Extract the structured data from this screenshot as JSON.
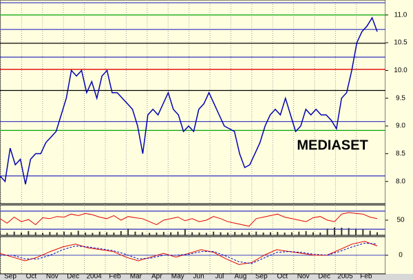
{
  "chart_data": [
    {
      "type": "line",
      "title": "MEDIASET",
      "color": "#0000b0",
      "values": [
        8.1,
        8.0,
        8.6,
        8.3,
        8.4,
        7.95,
        8.4,
        8.5,
        8.5,
        8.7,
        8.8,
        8.9,
        9.2,
        9.5,
        10.0,
        9.9,
        10.0,
        9.6,
        9.8,
        9.5,
        9.9,
        10.0,
        9.6,
        9.6,
        9.5,
        9.4,
        9.3,
        9.0,
        8.5,
        9.2,
        9.3,
        9.2,
        9.4,
        9.6,
        9.3,
        9.2,
        8.9,
        9.0,
        8.9,
        9.3,
        9.4,
        9.6,
        9.4,
        9.2,
        9.0,
        8.95,
        8.9,
        8.5,
        8.25,
        8.3,
        8.5,
        8.7,
        9.0,
        9.2,
        9.3,
        9.2,
        9.5,
        9.2,
        8.9,
        9.0,
        9.3,
        9.2,
        9.3,
        9.2,
        9.2,
        9.1,
        8.95,
        9.5,
        9.6,
        10.0,
        10.5,
        10.7,
        10.8,
        10.95,
        10.7
      ],
      "ylim": [
        7.6,
        11.27
      ],
      "yticks": [
        {
          "value": 8,
          "label": "8.0"
        },
        8.5,
        {
          "value": 9,
          "label": "9.0"
        },
        9.5,
        {
          "value": 10,
          "label": "10.0"
        },
        10.5,
        {
          "value": 11,
          "label": "11.0"
        }
      ],
      "hlines": [
        {
          "value": 11.22,
          "color": "#4040c0"
        },
        {
          "value": 11.0,
          "color": "#00a000"
        },
        {
          "value": 10.74,
          "color": "#4040c0"
        },
        {
          "value": 10.49,
          "color": "#000000"
        },
        {
          "value": 10.24,
          "color": "#4040c0"
        },
        {
          "value": 10.02,
          "color": "#e00000"
        },
        {
          "value": 9.64,
          "color": "#000000"
        },
        {
          "value": 9.08,
          "color": "#4040c0"
        },
        {
          "value": 8.92,
          "color": "#00a000"
        },
        {
          "value": 8.1,
          "color": "#4040c0"
        }
      ]
    },
    {
      "type": "line",
      "color": "#e00000",
      "values": [
        55,
        40,
        60,
        45,
        52,
        35,
        58,
        55,
        62,
        60,
        70,
        65,
        72,
        68,
        60,
        55,
        65,
        50,
        62,
        58,
        55,
        45,
        35,
        50,
        55,
        60,
        48,
        55,
        45,
        50,
        62,
        55,
        45,
        40,
        35,
        30,
        55,
        60,
        65,
        70,
        60,
        55,
        50,
        45,
        58,
        62,
        50,
        45,
        70,
        75,
        72,
        70,
        60,
        55
      ],
      "bars": [
        10,
        8,
        12,
        9,
        14,
        10,
        8,
        11,
        9,
        12,
        10,
        15,
        9,
        8,
        12,
        10,
        9,
        14,
        22,
        12,
        10,
        8,
        9,
        11,
        10,
        12,
        20,
        10,
        9,
        8,
        12,
        10,
        9,
        11,
        8,
        10,
        12,
        9,
        10,
        11,
        9,
        10,
        12,
        14,
        10,
        9,
        22,
        26,
        25,
        24,
        22,
        20,
        15,
        10
      ],
      "ylim": [
        0,
        100
      ],
      "yticks": [
        50
      ],
      "hlines": [
        {
          "value": 80,
          "color": "#4040c0"
        },
        {
          "value": 20,
          "color": "#4040c0"
        }
      ]
    },
    {
      "type": "line",
      "lines": [
        {
          "color": "#e00000",
          "dash": false,
          "values": [
            0.1,
            -0.1,
            -0.3,
            -0.1,
            0.2,
            0.45,
            0.6,
            0.4,
            0.3,
            0.2,
            -0.1,
            -0.3,
            -0.1,
            0.1,
            -0.1,
            0.1,
            0.3,
            0.15,
            -0.2,
            -0.5,
            -0.4,
            0.0,
            0.3,
            0.2,
            0.1,
            0.0,
            0.0,
            0.3,
            0.6,
            0.75,
            0.5
          ]
        },
        {
          "color": "#0000c0",
          "dash": true,
          "values": [
            0.0,
            0.0,
            -0.2,
            -0.2,
            0.0,
            0.3,
            0.5,
            0.45,
            0.35,
            0.25,
            0.05,
            -0.2,
            -0.15,
            0.0,
            0.0,
            0.05,
            0.2,
            0.2,
            -0.05,
            -0.35,
            -0.45,
            -0.15,
            0.15,
            0.2,
            0.15,
            0.05,
            0.0,
            0.2,
            0.45,
            0.65,
            0.6
          ]
        }
      ],
      "ylim": [
        -1,
        1
      ],
      "yticks": [
        0
      ],
      "zero_line": 0
    }
  ],
  "x_axis": {
    "labels": [
      "Sep",
      "Oct",
      "Nov",
      "Dec",
      "2004",
      "Feb",
      "Mar",
      "Apr",
      "May",
      "Jun",
      "Jul",
      "Aug",
      "Sep",
      "Oct",
      "Nov",
      "Dec",
      "2005",
      "Feb"
    ]
  }
}
